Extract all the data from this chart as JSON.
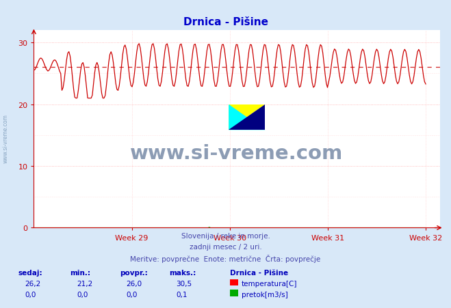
{
  "title": "Drnica - Pišine",
  "background_color": "#d8e8f8",
  "plot_bg_color": "#ffffff",
  "grid_color_h": "#ffaaaa",
  "grid_color_v": "#ffcccc",
  "title_color": "#0000cc",
  "axis_color": "#cc0000",
  "temp_line_color": "#cc0000",
  "flow_line_color": "#00aa00",
  "avg_line_color": "#cc0000",
  "avg_value": 26.0,
  "y_min": 0,
  "y_max": 31,
  "x_ticks_labels": [
    "Week 29",
    "Week 30",
    "Week 31",
    "Week 32"
  ],
  "subtitle1": "Slovenija / reke in morje.",
  "subtitle2": "zadnji mesec / 2 uri.",
  "subtitle3": "Meritve: povprečne  Enote: metrične  Črta: povprečje",
  "subtitle_color": "#4444aa",
  "footer_label_color": "#0000bb",
  "sedaj": "26,2",
  "min_val": "21,2",
  "povpr": "26,0",
  "maks": "30,5",
  "station_name": "Drnica - Pišine",
  "legend_temp": "temperatura[C]",
  "legend_flow": "pretok[m3/s]",
  "sedaj2": "0,0",
  "min2": "0,0",
  "povpr2": "0,0",
  "maks2": "0,1",
  "watermark_text": "www.si-vreme.com",
  "watermark_color": "#1a3a6a",
  "side_watermark_color": "#6688aa"
}
